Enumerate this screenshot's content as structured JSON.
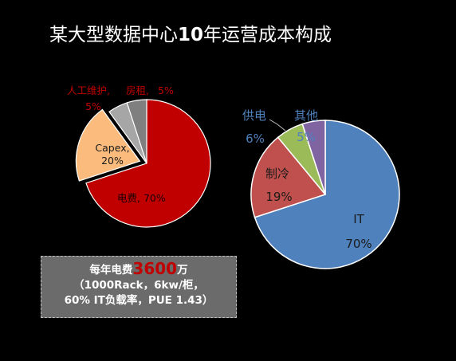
{
  "title": {
    "pre": "某大型数据中心",
    "highlight": "10",
    "post": "年运营成本构成"
  },
  "colors": {
    "left_pie": [
      "#c00000",
      "#fbbb7d",
      "#a6a6a6",
      "#7f7f7f"
    ],
    "right_pie": [
      "#4f81bd",
      "#c0504d",
      "#9bbb59",
      "#8064a2"
    ],
    "note_highlight": "#c00000"
  },
  "chart_data": [
    {
      "type": "pie",
      "exploded_slice": "Capex",
      "slices": [
        {
          "name": "电费",
          "value": 70,
          "label_name": "电费,",
          "label_value": "70%"
        },
        {
          "name": "Capex",
          "value": 20,
          "label_name": "Capex,",
          "label_value": "20%"
        },
        {
          "name": "人工维护",
          "value": 5,
          "label_name": "人工维护,",
          "label_value": "5%"
        },
        {
          "name": "房租",
          "value": 5,
          "label_name": "房租,",
          "label_value": "5%"
        }
      ]
    },
    {
      "type": "pie",
      "slices": [
        {
          "name": "IT",
          "value": 70,
          "label_name": "IT",
          "label_value": "70%"
        },
        {
          "name": "制冷",
          "value": 19,
          "label_name": "制冷",
          "label_value": "19%"
        },
        {
          "name": "供电",
          "value": 6,
          "label_name": "供电",
          "label_value": "6%"
        },
        {
          "name": "其他",
          "value": 5,
          "label_name": "其他",
          "label_value": "5%"
        }
      ]
    }
  ],
  "note": {
    "line1_pre": "每年电费",
    "line1_num": "3600",
    "line1_post": "万",
    "line2": "（1000Rack，6kw/柜，",
    "line3": "60% IT负载率，PUE 1.43）"
  }
}
